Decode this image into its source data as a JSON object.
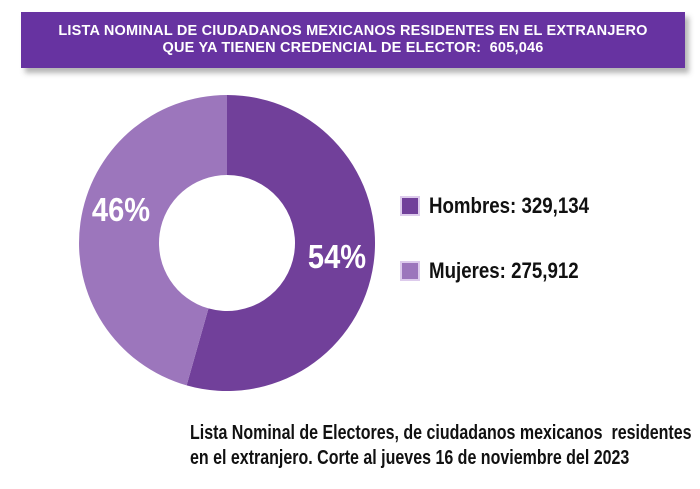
{
  "banner": {
    "line1": "LISTA NOMINAL DE CIUDADANOS MEXICANOS RESIDENTES EN EL EXTRANJERO",
    "line2": "QUE YA TIENEN CREDENCIAL DE ELECTOR:  605,046",
    "background_color": "#6733A1",
    "text_color": "#FFFFFF"
  },
  "chart_data": {
    "type": "pie",
    "donut": true,
    "title": "Lista Nominal de Ciudadanos Mexicanos Residentes en el Extranjero que ya tienen Credencial de Elector",
    "total": 605046,
    "start_angle": "top",
    "direction": "clockwise",
    "slices": [
      {
        "label": "Hombres",
        "value": 329134,
        "percent": 54,
        "percent_label": "54%",
        "color": "#71409A"
      },
      {
        "label": "Mujeres",
        "value": 275912,
        "percent": 46,
        "percent_label": "46%",
        "color": "#9C76BC"
      }
    ],
    "legend": [
      {
        "text": "Hombres: 329,134",
        "color": "#71409A"
      },
      {
        "text": "Mujeres: 275,912",
        "color": "#9C76BC"
      }
    ],
    "legend_position": "right",
    "label_color": "#FFFFFF"
  },
  "footer": {
    "line1": "Lista Nominal de Electores, de ciudadanos mexicanos  residentes",
    "line2": "en el extranjero. Corte al jueves 16 de noviembre del 2023"
  }
}
